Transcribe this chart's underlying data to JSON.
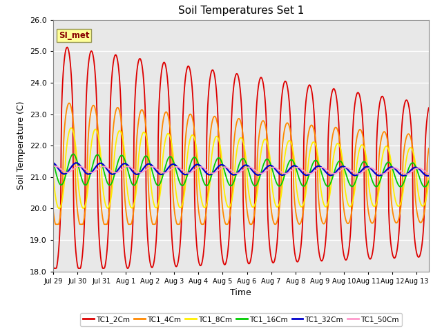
{
  "title": "Soil Temperatures Set 1",
  "xlabel": "Time",
  "ylabel": "Soil Temperature (C)",
  "annotation": "SI_met",
  "ylim": [
    18.0,
    26.0
  ],
  "yticks": [
    18.0,
    19.0,
    20.0,
    21.0,
    22.0,
    23.0,
    24.0,
    25.0,
    26.0
  ],
  "background_color": "#e8e8e8",
  "series": {
    "TC1_2Cm": {
      "color": "#dd0000",
      "lw": 1.3
    },
    "TC1_4Cm": {
      "color": "#ff8800",
      "lw": 1.3
    },
    "TC1_8Cm": {
      "color": "#ffee00",
      "lw": 1.3
    },
    "TC1_16Cm": {
      "color": "#00cc00",
      "lw": 1.3
    },
    "TC1_32Cm": {
      "color": "#0000cc",
      "lw": 1.6
    },
    "TC1_50Cm": {
      "color": "#ff99cc",
      "lw": 1.3
    }
  },
  "xtick_labels": [
    "Jul 29",
    "Jul 30",
    "Jul 31",
    "Aug 1",
    "Aug 2",
    "Aug 3",
    "Aug 4",
    "Aug 5",
    "Aug 6",
    "Aug 7",
    "Aug 8",
    "Aug 9",
    "Aug 10",
    "Aug 11",
    "Aug 12",
    "Aug 13"
  ],
  "xtick_positions": [
    0,
    1,
    2,
    3,
    4,
    5,
    6,
    7,
    8,
    9,
    10,
    11,
    12,
    13,
    14,
    15
  ]
}
